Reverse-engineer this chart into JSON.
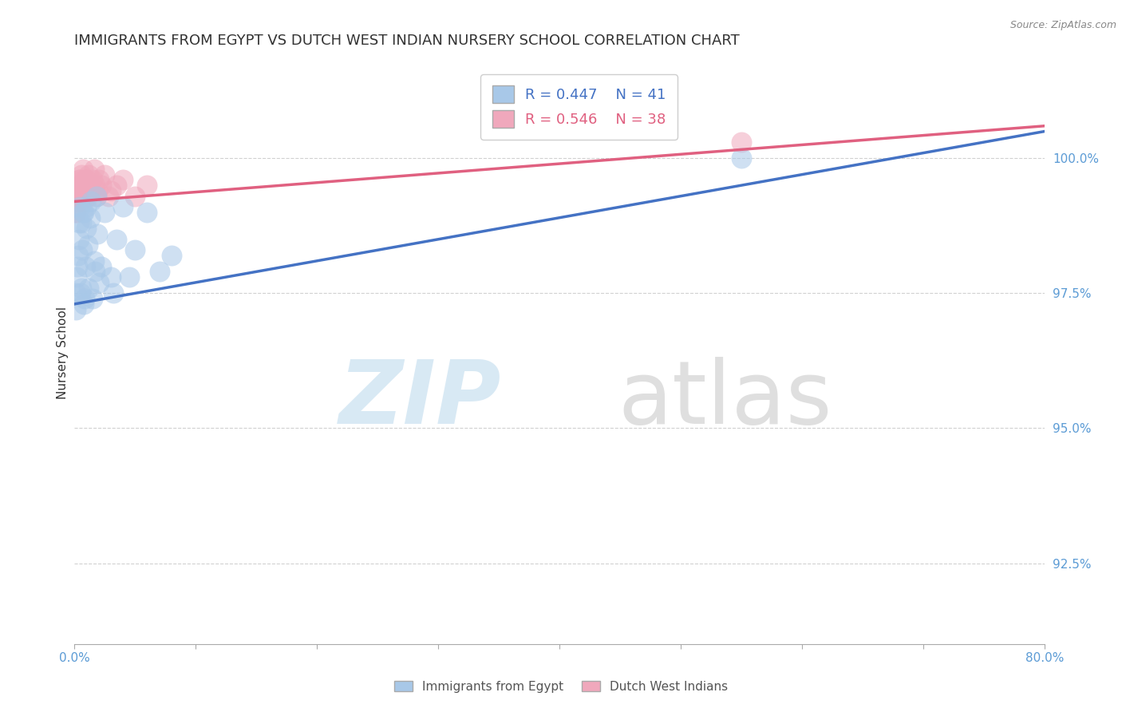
{
  "title": "IMMIGRANTS FROM EGYPT VS DUTCH WEST INDIAN NURSERY SCHOOL CORRELATION CHART",
  "source": "Source: ZipAtlas.com",
  "ylabel": "Nursery School",
  "xlabel": "",
  "xlim": [
    0.0,
    80.0
  ],
  "ylim": [
    91.0,
    101.8
  ],
  "yticks": [
    92.5,
    95.0,
    97.5,
    100.0
  ],
  "ytick_labels": [
    "92.5%",
    "95.0%",
    "97.5%",
    "100.0%"
  ],
  "xticks": [
    0.0,
    10.0,
    20.0,
    30.0,
    40.0,
    50.0,
    60.0,
    70.0,
    80.0
  ],
  "xtick_labels": [
    "0.0%",
    "",
    "",
    "",
    "",
    "",
    "",
    "",
    "80.0%"
  ],
  "blue_label": "Immigrants from Egypt",
  "pink_label": "Dutch West Indians",
  "blue_R": "R = 0.447",
  "blue_N": "N = 41",
  "pink_R": "R = 0.546",
  "pink_N": "N = 38",
  "blue_color": "#a8c8e8",
  "pink_color": "#f0a8bc",
  "blue_line_color": "#4472c4",
  "pink_line_color": "#e06080",
  "blue_x": [
    0.1,
    0.2,
    0.3,
    0.4,
    0.5,
    0.6,
    0.7,
    0.8,
    0.9,
    1.0,
    1.1,
    1.2,
    1.3,
    1.4,
    1.5,
    1.6,
    1.7,
    1.8,
    1.9,
    2.0,
    2.2,
    2.5,
    3.0,
    3.5,
    4.0,
    5.0,
    6.0,
    7.0,
    8.0,
    0.15,
    0.25,
    0.35,
    0.45,
    0.55,
    0.65,
    0.75,
    0.85,
    0.95,
    3.2,
    4.5,
    55.0
  ],
  "blue_y": [
    97.2,
    97.8,
    98.2,
    98.5,
    97.5,
    98.8,
    99.0,
    97.3,
    98.0,
    99.1,
    98.4,
    97.6,
    98.9,
    99.2,
    97.4,
    98.1,
    97.9,
    99.3,
    98.6,
    97.7,
    98.0,
    99.0,
    97.8,
    98.5,
    99.1,
    98.3,
    99.0,
    97.9,
    98.2,
    97.5,
    98.0,
    98.8,
    99.1,
    97.6,
    98.3,
    99.0,
    97.4,
    98.7,
    97.5,
    97.8,
    100.0
  ],
  "pink_x": [
    0.1,
    0.2,
    0.3,
    0.4,
    0.5,
    0.6,
    0.7,
    0.8,
    0.9,
    1.0,
    1.1,
    1.2,
    1.3,
    1.4,
    1.5,
    1.6,
    1.7,
    1.8,
    1.9,
    2.0,
    2.2,
    2.5,
    3.0,
    3.5,
    4.0,
    5.0,
    6.0,
    0.15,
    0.25,
    0.35,
    0.45,
    0.55,
    0.65,
    0.75,
    0.85,
    0.95,
    2.8,
    55.0
  ],
  "pink_y": [
    99.0,
    99.3,
    99.5,
    99.6,
    99.4,
    99.7,
    99.8,
    99.2,
    99.5,
    99.6,
    99.3,
    99.7,
    99.5,
    99.4,
    99.6,
    99.8,
    99.5,
    99.3,
    99.4,
    99.6,
    99.5,
    99.7,
    99.4,
    99.5,
    99.6,
    99.3,
    99.5,
    99.0,
    99.2,
    99.4,
    99.6,
    99.5,
    99.3,
    99.6,
    99.4,
    99.5,
    99.3,
    100.3
  ],
  "blue_trendline_x0": 0.0,
  "blue_trendline_y0": 97.3,
  "blue_trendline_x1": 80.0,
  "blue_trendline_y1": 100.5,
  "pink_trendline_x0": 0.0,
  "pink_trendline_y0": 99.2,
  "pink_trendline_x1": 80.0,
  "pink_trendline_y1": 100.6,
  "watermark_zip": "ZIP",
  "watermark_atlas": "atlas",
  "title_fontsize": 13,
  "axis_label_fontsize": 11,
  "tick_fontsize": 11,
  "legend_fontsize": 13
}
